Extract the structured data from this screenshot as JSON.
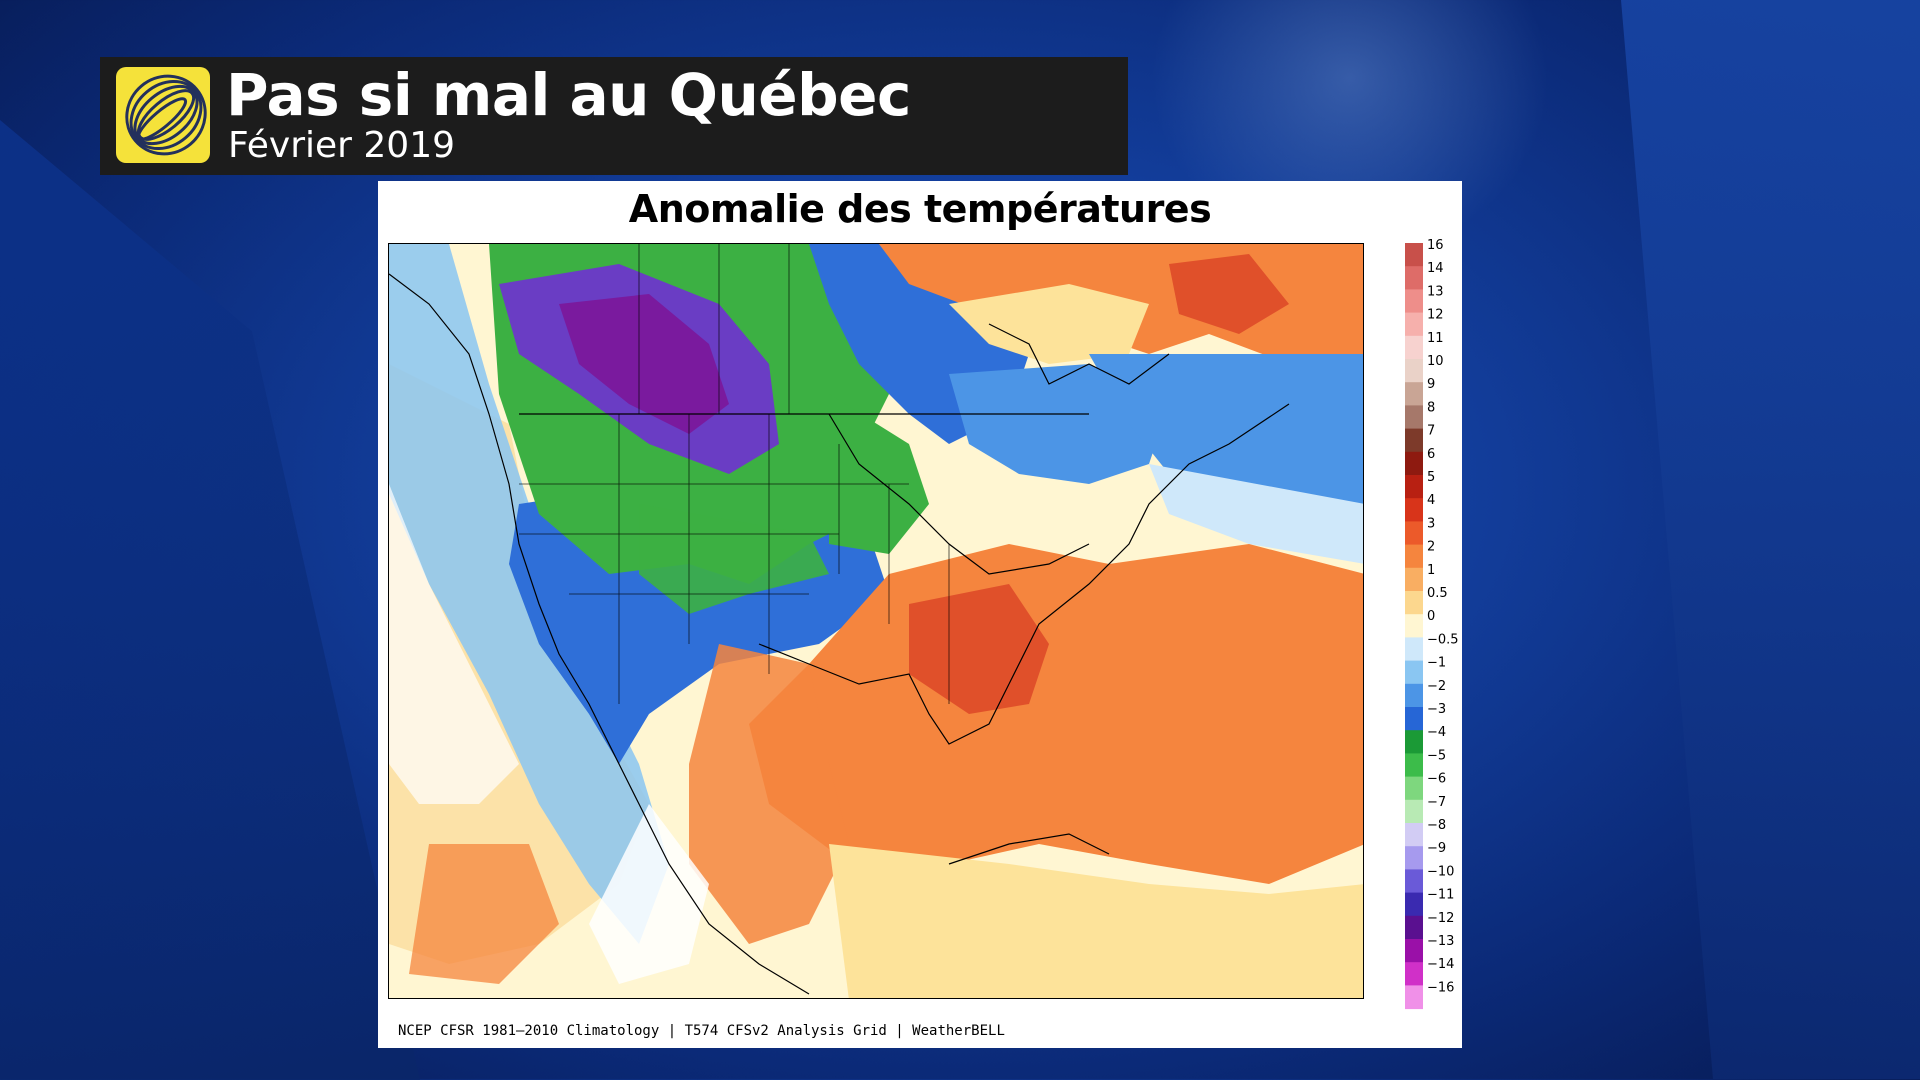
{
  "header": {
    "title": "Pas si mal au Québec",
    "subtitle": "Février 2019",
    "logo_icon": "globe-logo-icon",
    "logo_color": "#f5e23a"
  },
  "map": {
    "title": "Anomalie des températures",
    "credit": "NCEP CFSR 1981–2010 Climatology | T574 CFSv2 Analysis Grid | WeatherBELL",
    "colors": {
      "strong_cold": "#7a1a9e",
      "cold_purple": "#6a3dc4",
      "cold_green": "#3cb043",
      "cold_blue": "#2f6fd8",
      "neutral": "#ffffff",
      "warm_light": "#fde39a",
      "warm_orange": "#f58a4a",
      "warm_red": "#e0502a"
    }
  },
  "legend": {
    "items": [
      {
        "label": "16",
        "color": "#c8504a"
      },
      {
        "label": "14",
        "color": "#de6c68"
      },
      {
        "label": "13",
        "color": "#ee8e8a"
      },
      {
        "label": "12",
        "color": "#f6b0ac"
      },
      {
        "label": "11",
        "color": "#f7d2cf"
      },
      {
        "label": "10",
        "color": "#ead2c8"
      },
      {
        "label": "9",
        "color": "#c9a595"
      },
      {
        "label": "8",
        "color": "#a6786a"
      },
      {
        "label": "7",
        "color": "#7d3a2a"
      },
      {
        "label": "6",
        "color": "#8e1a10"
      },
      {
        "label": "5",
        "color": "#b82012"
      },
      {
        "label": "4",
        "color": "#d8341a"
      },
      {
        "label": "3",
        "color": "#ec5a2a"
      },
      {
        "label": "2",
        "color": "#f5853e"
      },
      {
        "label": "1",
        "color": "#f9ae62"
      },
      {
        "label": "0.5",
        "color": "#fcd78e"
      },
      {
        "label": "0",
        "color": "#fff6d2"
      },
      {
        "label": "−0.5",
        "color": "#cfe8fa"
      },
      {
        "label": "−1",
        "color": "#8ac6f2"
      },
      {
        "label": "−2",
        "color": "#4c95e6"
      },
      {
        "label": "−3",
        "color": "#2666d6"
      },
      {
        "label": "−4",
        "color": "#1b9a36"
      },
      {
        "label": "−5",
        "color": "#3cbc4a"
      },
      {
        "label": "−6",
        "color": "#7ed77e"
      },
      {
        "label": "−7",
        "color": "#b8eab4"
      },
      {
        "label": "−8",
        "color": "#d2ccf4"
      },
      {
        "label": "−9",
        "color": "#a69aee"
      },
      {
        "label": "−10",
        "color": "#6a5ad8"
      },
      {
        "label": "−11",
        "color": "#3a2ab0"
      },
      {
        "label": "−12",
        "color": "#5a1090"
      },
      {
        "label": "−13",
        "color": "#9a10a8"
      },
      {
        "label": "−14",
        "color": "#d030c8"
      },
      {
        "label": "−16",
        "color": "#f090e8"
      }
    ]
  }
}
